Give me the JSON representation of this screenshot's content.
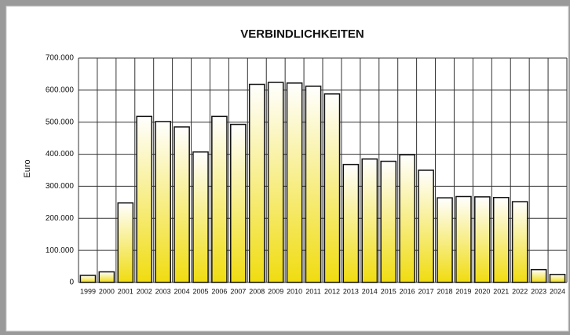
{
  "chart_data": {
    "type": "bar",
    "title": "VERBINDLICHKEITEN",
    "y_label": "Euro",
    "categories": [
      "1999",
      "2000",
      "2001",
      "2002",
      "2003",
      "2004",
      "2005",
      "2006",
      "2007",
      "2008",
      "2009",
      "2010",
      "2011",
      "2012",
      "2013",
      "2014",
      "2015",
      "2016",
      "2017",
      "2018",
      "2019",
      "2020",
      "2021",
      "2022",
      "2023",
      "2024"
    ],
    "values": [
      22000,
      33000,
      248000,
      518000,
      502000,
      485000,
      407000,
      518000,
      493000,
      618000,
      624000,
      622000,
      612000,
      588000,
      368000,
      385000,
      378000,
      398000,
      350000,
      264000,
      268000,
      267000,
      265000,
      252000,
      40000,
      25000
    ],
    "color": "#f0dc10",
    "ylim": [
      0,
      700000
    ],
    "yticks": [
      0,
      {
        "value": 100000,
        "label": "100.000"
      },
      {
        "value": 200000,
        "label": "200.000"
      },
      {
        "value": 300000,
        "label": "300.000"
      },
      {
        "value": 400000,
        "label": "400.000"
      },
      {
        "value": 500000,
        "label": "500.000"
      },
      {
        "value": 600000,
        "label": "600.000"
      },
      {
        "value": 700000,
        "label": "700.000"
      }
    ],
    "grid": true
  }
}
